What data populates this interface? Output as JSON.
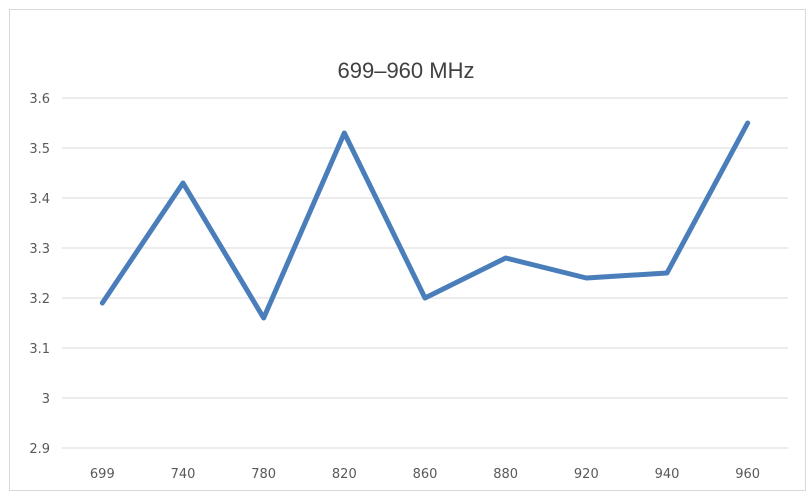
{
  "chart_data": {
    "type": "line",
    "title": "699–960 MHz",
    "xlabel": "",
    "ylabel": "",
    "categories": [
      "699",
      "740",
      "780",
      "820",
      "860",
      "880",
      "920",
      "940",
      "960"
    ],
    "series": [
      {
        "values": [
          3.19,
          3.43,
          3.16,
          3.53,
          3.2,
          3.28,
          3.24,
          3.25,
          3.55
        ]
      }
    ],
    "ylim": [
      2.9,
      3.6
    ],
    "yticks": [
      "2.9",
      "3",
      "3.1",
      "3.2",
      "3.3",
      "3.4",
      "3.5",
      "3.6"
    ],
    "grid": true,
    "legend": "none"
  },
  "colors": {
    "series": "#4a7ebb",
    "grid": "#d9d9d9",
    "text": "#595959",
    "title": "#404040"
  }
}
